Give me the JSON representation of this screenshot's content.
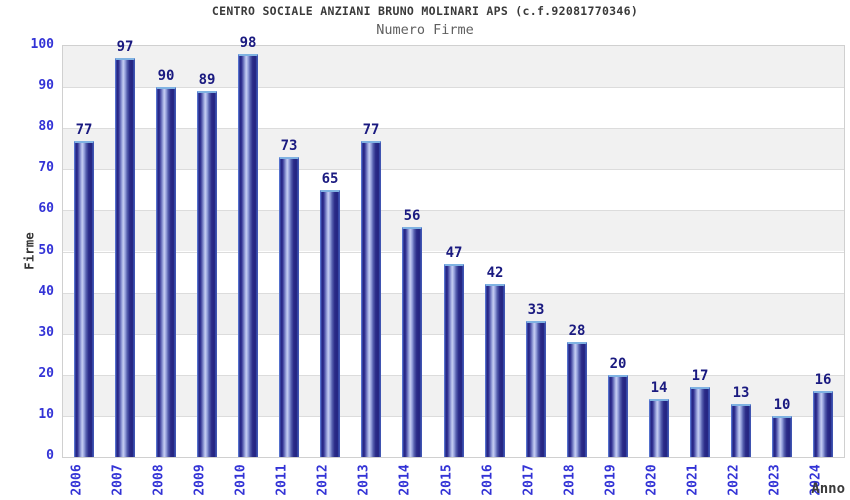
{
  "header": {
    "title": "CENTRO SOCIALE ANZIANI BRUNO MOLINARI APS (c.f.92081770346)",
    "subtitle": "Numero Firme"
  },
  "chart_data": {
    "type": "bar",
    "title": "CENTRO SOCIALE ANZIANI BRUNO MOLINARI APS (c.f.92081770346)",
    "subtitle": "Numero Firme",
    "categories": [
      "2006",
      "2007",
      "2008",
      "2009",
      "2010",
      "2011",
      "2012",
      "2013",
      "2014",
      "2015",
      "2016",
      "2017",
      "2018",
      "2019",
      "2020",
      "2021",
      "2022",
      "2023",
      "2024"
    ],
    "values": [
      77,
      97,
      90,
      89,
      98,
      73,
      65,
      77,
      56,
      47,
      42,
      33,
      28,
      20,
      14,
      17,
      13,
      10,
      16
    ],
    "xlabel": "Anno",
    "ylabel": "Firme",
    "ylim": [
      0,
      100
    ],
    "ytick_step": 10,
    "grid": "horizontal-bands",
    "legend": "none",
    "value_labels": true,
    "colors": {
      "bar_dark": "#242480",
      "bar_highlight": "#c6cef2",
      "bar_edge": "#4a63c8",
      "bar_cap": "#7fb2e2",
      "tick_text": "#3333d6",
      "value_label_text": "#1a1a80",
      "band_gray": "#f1f1f1",
      "band_white": "#ffffff",
      "gridline": "#dcdcdc",
      "plot_border": "#d0d0d0",
      "title_text": "#3a3a3a",
      "subtitle_text": "#5f5f5f"
    }
  }
}
